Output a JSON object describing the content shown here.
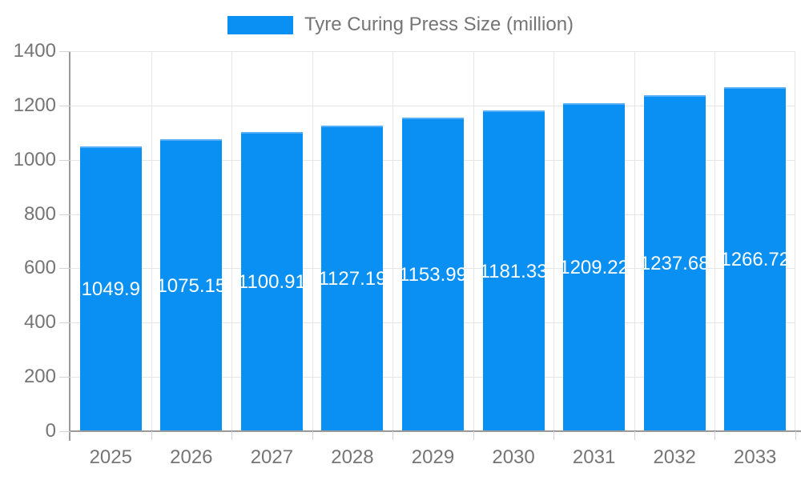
{
  "legend": {
    "label": "Tyre Curing Press Size (million)"
  },
  "chart_data": {
    "type": "bar",
    "title": "Tyre Curing Press Size (million)",
    "categories": [
      "2025",
      "2026",
      "2027",
      "2028",
      "2029",
      "2030",
      "2031",
      "2032",
      "2033"
    ],
    "series": [
      {
        "name": "Tyre Curing Press Size (million)",
        "values": [
          1049.9,
          1075.15,
          1100.91,
          1127.19,
          1153.99,
          1181.33,
          1209.22,
          1237.68,
          1266.72
        ]
      }
    ],
    "bar_value_labels": [
      "1049.9",
      "1075.15",
      "1100.91",
      "1127.19",
      "1153.99",
      "1181.33",
      "1209.22",
      "1237.68",
      "1266.72"
    ],
    "xlabel": "",
    "ylabel": "",
    "ylim": [
      0,
      1400
    ],
    "yticks": [
      0,
      200,
      400,
      600,
      800,
      1000,
      1200,
      1400
    ],
    "grid": {
      "horizontal": true,
      "vertical": true
    },
    "legend_position": "top-center",
    "colors": {
      "bar": "#0990f2",
      "bar_top_edge": "#58aef7",
      "axis_line": "#9a9a9a",
      "gridline": "#e6e6e6",
      "tick_mark": "#d4d4d4",
      "axis_text": "#757575",
      "bar_label_text": "#ffffff",
      "background": "#ffffff"
    }
  }
}
